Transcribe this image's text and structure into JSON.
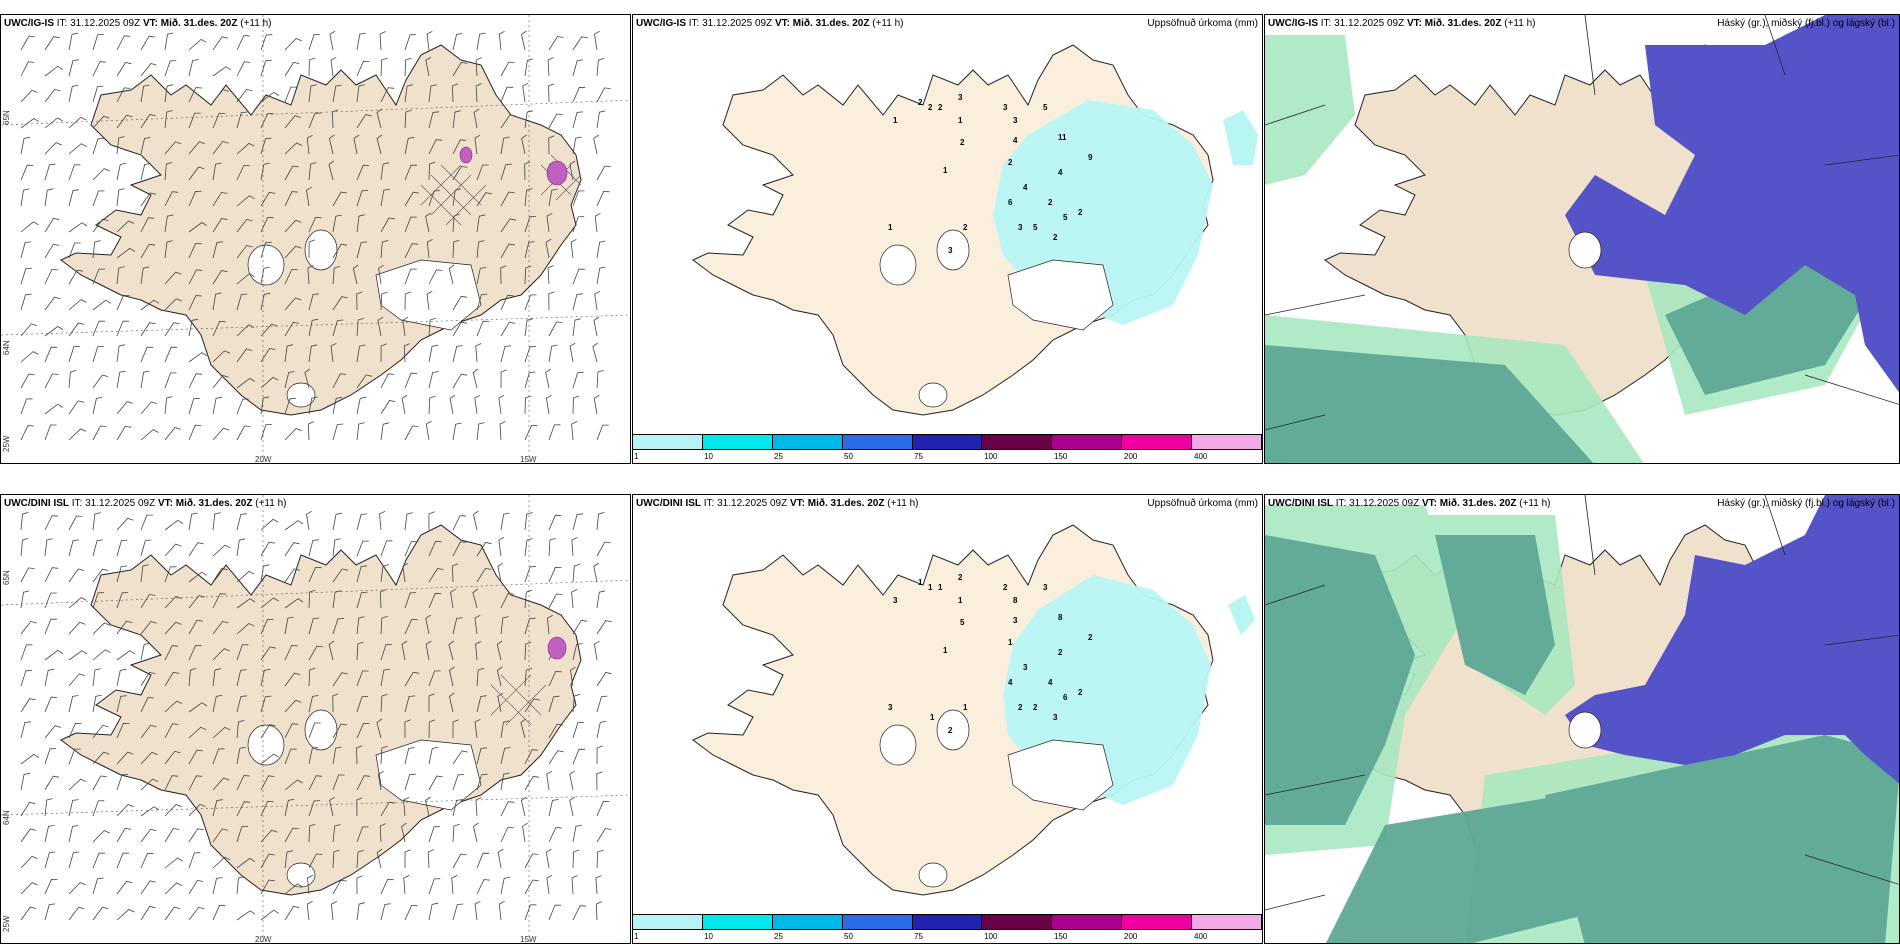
{
  "rows": [
    {
      "model": "UWC/IG-IS",
      "it_label": "IT:",
      "it_value": "31.12.2025 09Z",
      "vt_label": "VT:",
      "vt_value": "Mið. 31.des. 20Z",
      "lead": "(+11 h)",
      "lat_labels": [
        "65N",
        "64N",
        "25W"
      ],
      "lon_labels": [
        "20W",
        "15W"
      ],
      "precip_numbers": [
        {
          "v": "2"
        },
        {
          "v": "2"
        },
        {
          "v": "2"
        },
        {
          "v": "3"
        },
        {
          "v": "1"
        },
        {
          "v": "1"
        },
        {
          "v": "2"
        },
        {
          "v": "3"
        },
        {
          "v": "3"
        },
        {
          "v": "5"
        },
        {
          "v": "4"
        },
        {
          "v": "11"
        },
        {
          "v": "1"
        },
        {
          "v": "9"
        },
        {
          "v": "4"
        },
        {
          "v": "2"
        },
        {
          "v": "4"
        },
        {
          "v": "6"
        },
        {
          "v": "2"
        },
        {
          "v": "2"
        },
        {
          "v": "2"
        },
        {
          "v": "3"
        },
        {
          "v": "5"
        },
        {
          "v": "5"
        },
        {
          "v": "2"
        },
        {
          "v": "3"
        },
        {
          "v": "1"
        }
      ]
    },
    {
      "model": "UWC/DINI ISL",
      "it_label": "IT:",
      "it_value": "31.12.2025 09Z",
      "vt_label": "VT:",
      "vt_value": "Mið. 31.des. 20Z",
      "lead": "(+11 h)",
      "lat_labels": [
        "65N",
        "64N",
        "25W"
      ],
      "lon_labels": [
        "20W",
        "15W"
      ],
      "precip_numbers": [
        {
          "v": "1"
        },
        {
          "v": "1"
        },
        {
          "v": "1"
        },
        {
          "v": "2"
        },
        {
          "v": "1"
        },
        {
          "v": "3"
        },
        {
          "v": "5"
        },
        {
          "v": "2"
        },
        {
          "v": "8"
        },
        {
          "v": "3"
        },
        {
          "v": "3"
        },
        {
          "v": "8"
        },
        {
          "v": "1"
        },
        {
          "v": "2"
        },
        {
          "v": "2"
        },
        {
          "v": "1"
        },
        {
          "v": "3"
        },
        {
          "v": "4"
        },
        {
          "v": "4"
        },
        {
          "v": "2"
        },
        {
          "v": "1"
        },
        {
          "v": "2"
        },
        {
          "v": "2"
        },
        {
          "v": "6"
        },
        {
          "v": "3"
        },
        {
          "v": "2"
        },
        {
          "v": "3"
        },
        {
          "v": "1"
        }
      ]
    }
  ],
  "precip_title": "Uppsöfnuð úrkoma (mm)",
  "cloud_title": "Háský (gr.), miðský (fj.bl.) og lágský (bl.)",
  "colorbar": {
    "colors": [
      "#b5f4f4",
      "#00e8ee",
      "#00b8e8",
      "#2b6ce8",
      "#2222b0",
      "#6a0048",
      "#a8008c",
      "#f000a0",
      "#f4a8e8"
    ],
    "ticks": [
      "1",
      "10",
      "25",
      "50",
      "75",
      "100",
      "150",
      "200",
      "400"
    ]
  },
  "colors": {
    "land": "#f0e1cc",
    "land_precip": "#faeedd",
    "precip_light": "#b8f6f4",
    "cloud_high": "#5454c8",
    "cloud_mid": "#5ea896",
    "cloud_low": "#a8e8c0"
  }
}
